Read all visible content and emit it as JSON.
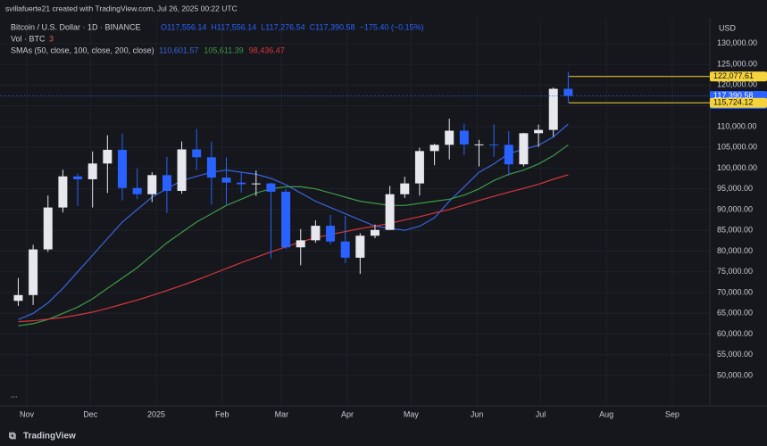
{
  "header": {
    "byline": "svillafuerte21 created with TradingView.com, Jul 26, 2025 00:22 UTC",
    "footer": "TradingView"
  },
  "chart_data": {
    "type": "candlestick",
    "title": "Bitcoin / U.S. Dollar · 1D · BINANCE",
    "ohlc_labels": [
      "O117,556.14",
      "H117,556.14",
      "L117,276.54",
      "C117,390.58",
      "−175.40 (−0.15%)"
    ],
    "vol_label": "Vol · BTC",
    "vol_value": "3",
    "sma_label": "SMAs (50, close, 100, close, 200, close)",
    "currency": "USD",
    "x": [
      -4,
      3,
      10,
      17,
      24,
      31,
      38,
      45,
      52,
      59,
      66,
      73,
      80,
      87,
      94,
      101,
      108,
      115,
      122,
      129,
      136,
      143,
      150,
      157,
      164,
      171,
      178,
      185,
      192,
      199,
      206,
      213,
      220,
      227,
      234,
      241,
      248,
      255
    ],
    "open": [
      68000,
      69400,
      80400,
      90500,
      98000,
      97300,
      101100,
      104400,
      95200,
      93700,
      98300,
      94500,
      104500,
      102600,
      97700,
      96500,
      96100,
      96300,
      94300,
      80900,
      82600,
      86100,
      82300,
      78400,
      83700,
      85100,
      93700,
      96300,
      104100,
      105600,
      109000,
      105700,
      105700,
      105600,
      100900,
      108400,
      109200,
      119100
    ],
    "high": [
      73500,
      81500,
      93400,
      99600,
      98700,
      104000,
      107900,
      108300,
      99900,
      99000,
      102700,
      106400,
      109400,
      106400,
      102500,
      98800,
      99400,
      96500,
      95000,
      85300,
      87400,
      88700,
      88500,
      84300,
      86400,
      95700,
      97900,
      104900,
      105800,
      111900,
      110700,
      106800,
      110500,
      108900,
      108500,
      110500,
      119400,
      123200
    ],
    "low": [
      66800,
      67000,
      79800,
      89300,
      90800,
      90500,
      94000,
      92200,
      92500,
      91800,
      89200,
      93800,
      99500,
      91200,
      91200,
      94100,
      93300,
      78200,
      80500,
      76600,
      82000,
      81600,
      77100,
      74500,
      83100,
      85100,
      92800,
      93400,
      100700,
      102100,
      103100,
      100400,
      102700,
      98200,
      100400,
      105100,
      107500,
      115700
    ],
    "close": [
      69400,
      80400,
      90500,
      98000,
      97300,
      101100,
      104400,
      95200,
      93700,
      98300,
      94500,
      104500,
      102600,
      97700,
      96500,
      96100,
      96300,
      94300,
      80900,
      82600,
      86100,
      82300,
      78400,
      83700,
      85100,
      93700,
      96300,
      104100,
      105600,
      109000,
      105700,
      105700,
      105600,
      100900,
      108400,
      109200,
      119100,
      117400
    ],
    "up_color": "#e6e8ee",
    "down_color": "#2962ff",
    "series": [
      {
        "name": "110,601.57",
        "color": "#3a64e0",
        "values": [
          63500,
          65000,
          67500,
          71000,
          75000,
          79000,
          83000,
          87000,
          90000,
          93000,
          95000,
          97000,
          98000,
          99000,
          99500,
          99000,
          98500,
          97500,
          96000,
          94000,
          92000,
          90500,
          89000,
          87500,
          86000,
          85500,
          85000,
          86000,
          88000,
          92000,
          95500,
          99000,
          101000,
          103500,
          104500,
          105500,
          107500,
          110600
        ]
      },
      {
        "name": "105,611.39",
        "color": "#3f9a4b",
        "values": [
          62000,
          62500,
          63500,
          65000,
          66500,
          68500,
          71000,
          73500,
          76000,
          79000,
          82000,
          84500,
          87000,
          89000,
          91000,
          92500,
          94000,
          95000,
          95500,
          95500,
          95000,
          94000,
          93000,
          92000,
          91500,
          91000,
          91000,
          91500,
          92000,
          92500,
          93500,
          95000,
          97000,
          98500,
          99500,
          101000,
          103000,
          105600
        ]
      },
      {
        "name": "98,436.47",
        "color": "#d9363e",
        "values": [
          63000,
          63200,
          63600,
          64000,
          64600,
          65300,
          66200,
          67200,
          68200,
          69300,
          70500,
          71700,
          73000,
          74400,
          75800,
          77200,
          78500,
          79800,
          81000,
          82200,
          83200,
          84000,
          84700,
          85400,
          86000,
          86700,
          87500,
          88300,
          89200,
          90000,
          91100,
          92200,
          93200,
          94200,
          95100,
          96100,
          97300,
          98400
        ]
      }
    ],
    "price_labels": [
      {
        "value": 122077.61,
        "label": "122,077.61",
        "color": "#f5d33b"
      },
      {
        "value": 117390.58,
        "label": "117,390.58",
        "color": "#2962ff"
      },
      {
        "value": 115724.12,
        "label": "115,724.12",
        "color": "#f5d33b"
      }
    ],
    "countdown": "23:37:32",
    "xlim": [
      -12.6,
      321.7
    ],
    "ylim": [
      42700,
      136200
    ],
    "xticks": [
      {
        "value": 0,
        "label": "Nov"
      },
      {
        "value": 30,
        "label": "Dec"
      },
      {
        "value": 61,
        "label": "2025"
      },
      {
        "value": 92,
        "label": "Feb"
      },
      {
        "value": 120,
        "label": "Mar"
      },
      {
        "value": 151,
        "label": "Apr"
      },
      {
        "value": 181,
        "label": "May"
      },
      {
        "value": 212,
        "label": "Jun"
      },
      {
        "value": 242,
        "label": "Jul"
      },
      {
        "value": 273,
        "label": "Aug"
      },
      {
        "value": 304,
        "label": "Sep"
      }
    ],
    "yticks": [
      {
        "value": 50000,
        "label": "50,000.00"
      },
      {
        "value": 55000,
        "label": "55,000.00"
      },
      {
        "value": 60000,
        "label": "60,000.00"
      },
      {
        "value": 65000,
        "label": "65,000.00"
      },
      {
        "value": 70000,
        "label": "70,000.00"
      },
      {
        "value": 75000,
        "label": "75,000.00"
      },
      {
        "value": 80000,
        "label": "80,000.00"
      },
      {
        "value": 85000,
        "label": "85,000.00"
      },
      {
        "value": 90000,
        "label": "90,000.00"
      },
      {
        "value": 95000,
        "label": "95,000.00"
      },
      {
        "value": 100000,
        "label": "100,000.00"
      },
      {
        "value": 105000,
        "label": "105,000.00"
      },
      {
        "value": 110000,
        "label": "110,000.00"
      },
      {
        "value": 115000,
        "label": "115,000.00"
      },
      {
        "value": 120000,
        "label": "120,000.00"
      },
      {
        "value": 125000,
        "label": "125,000.00"
      },
      {
        "value": 130000,
        "label": "130,000.00"
      }
    ],
    "grid": true
  }
}
